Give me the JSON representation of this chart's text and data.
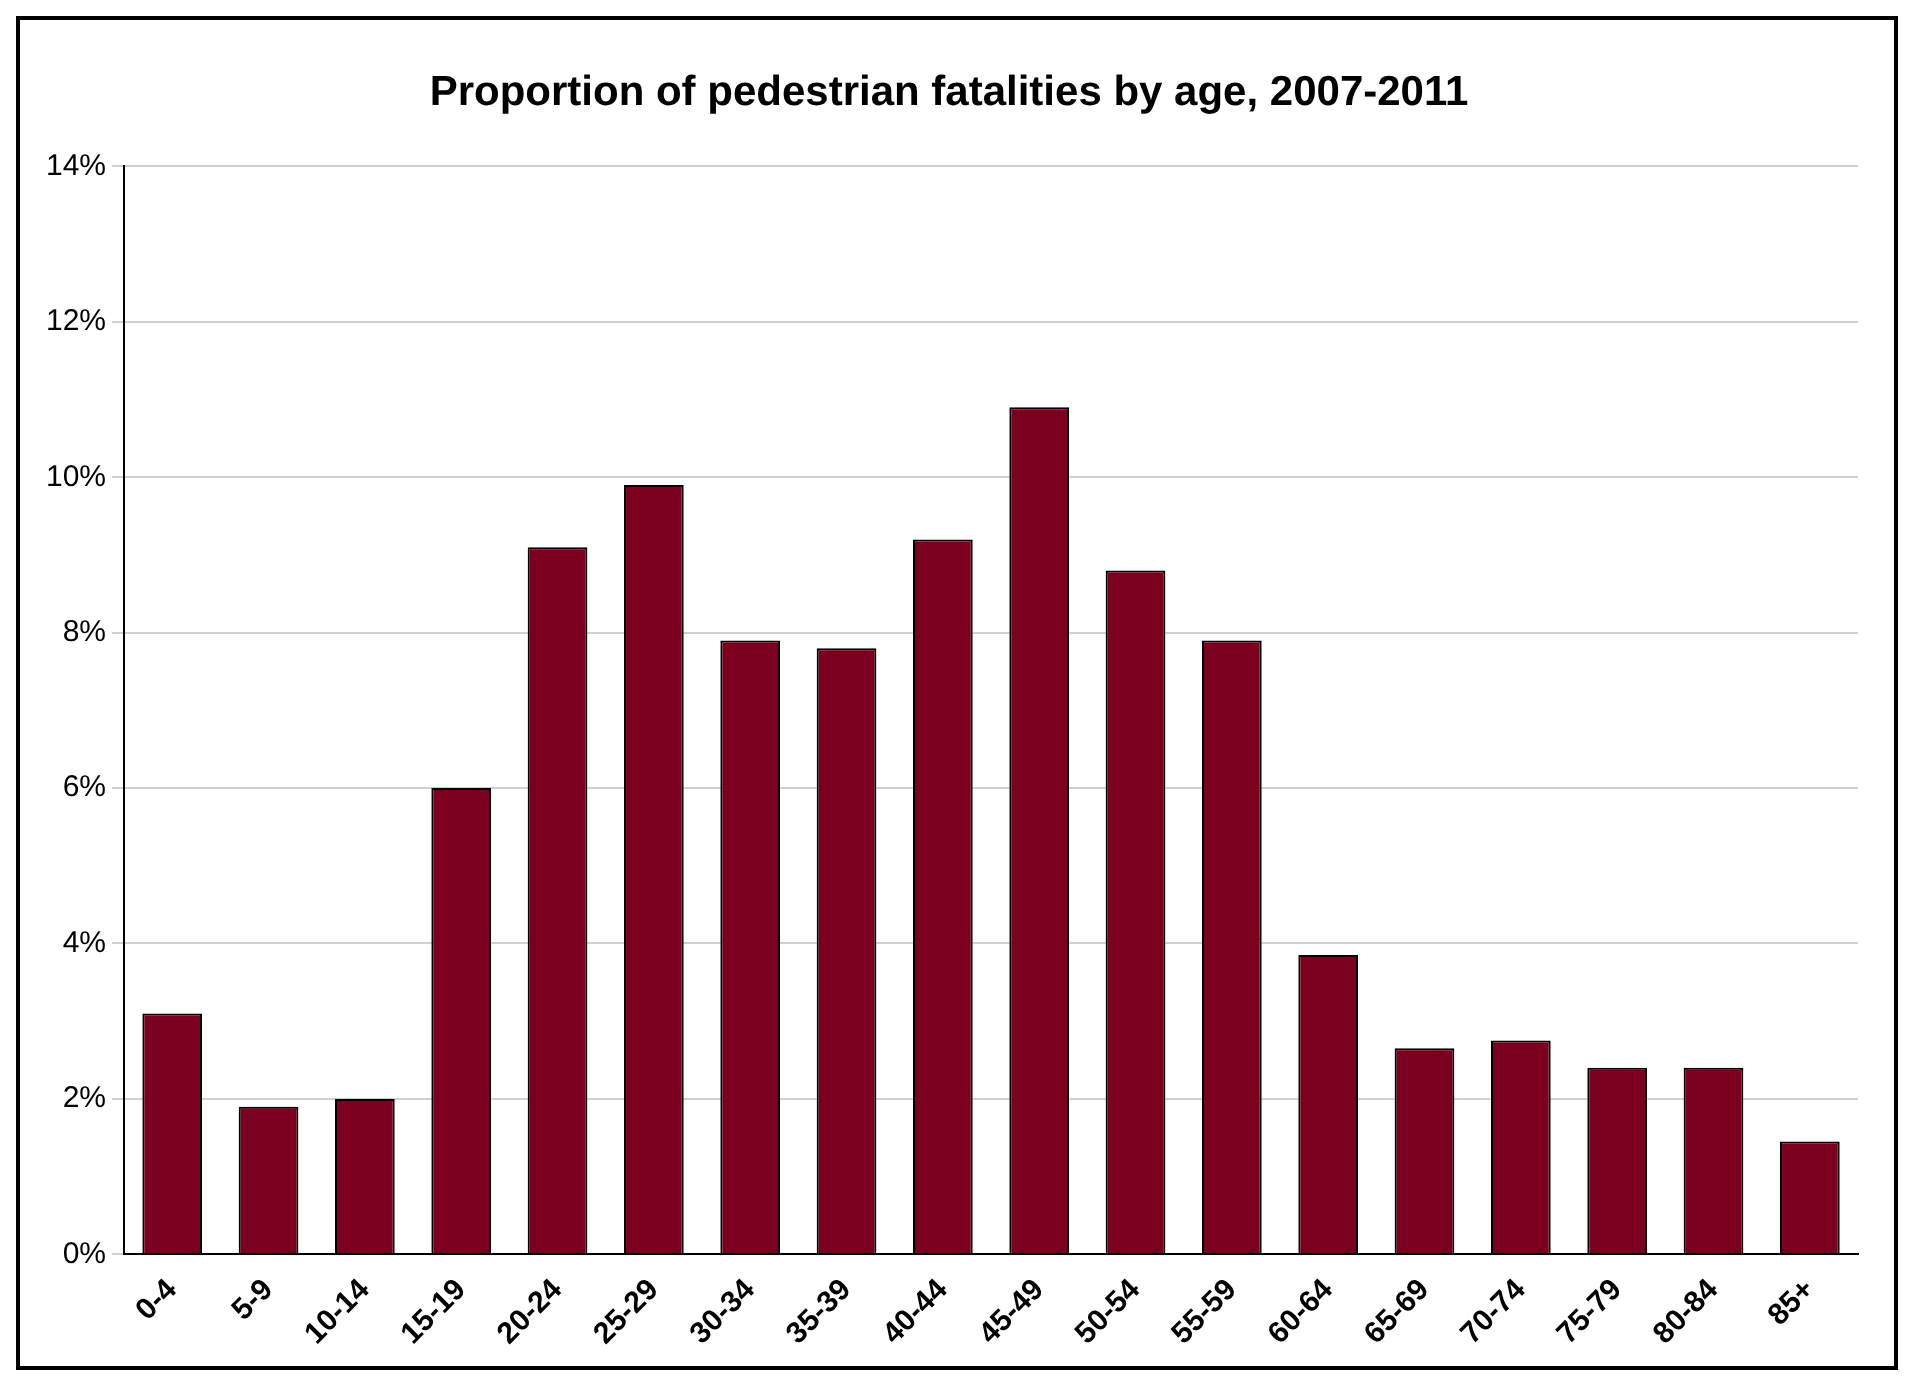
{
  "chart_data": {
    "type": "bar",
    "title": "Proportion of pedestrian fatalities by age, 2007-2011",
    "categories": [
      "0-4",
      "5-9",
      "10-14",
      "15-19",
      "20-24",
      "25-29",
      "30-34",
      "35-39",
      "40-44",
      "45-49",
      "50-54",
      "55-59",
      "60-64",
      "65-69",
      "70-74",
      "75-79",
      "80-84",
      "85+"
    ],
    "values": [
      3.1,
      1.9,
      2.0,
      6.0,
      9.1,
      9.9,
      7.9,
      7.8,
      9.2,
      10.9,
      8.8,
      7.9,
      3.85,
      2.65,
      2.75,
      2.4,
      2.4,
      1.45
    ],
    "color": "#7b0020",
    "ylim": [
      0,
      14
    ],
    "yticks": [
      {
        "value": 0,
        "label": "0%"
      },
      {
        "value": 2,
        "label": "2%"
      },
      {
        "value": 4,
        "label": "4%"
      },
      {
        "value": 6,
        "label": "6%"
      },
      {
        "value": 8,
        "label": "8%"
      },
      {
        "value": 10,
        "label": "10%"
      },
      {
        "value": 12,
        "label": "12%"
      },
      {
        "value": 14,
        "label": "14%"
      }
    ],
    "grid": "y"
  }
}
